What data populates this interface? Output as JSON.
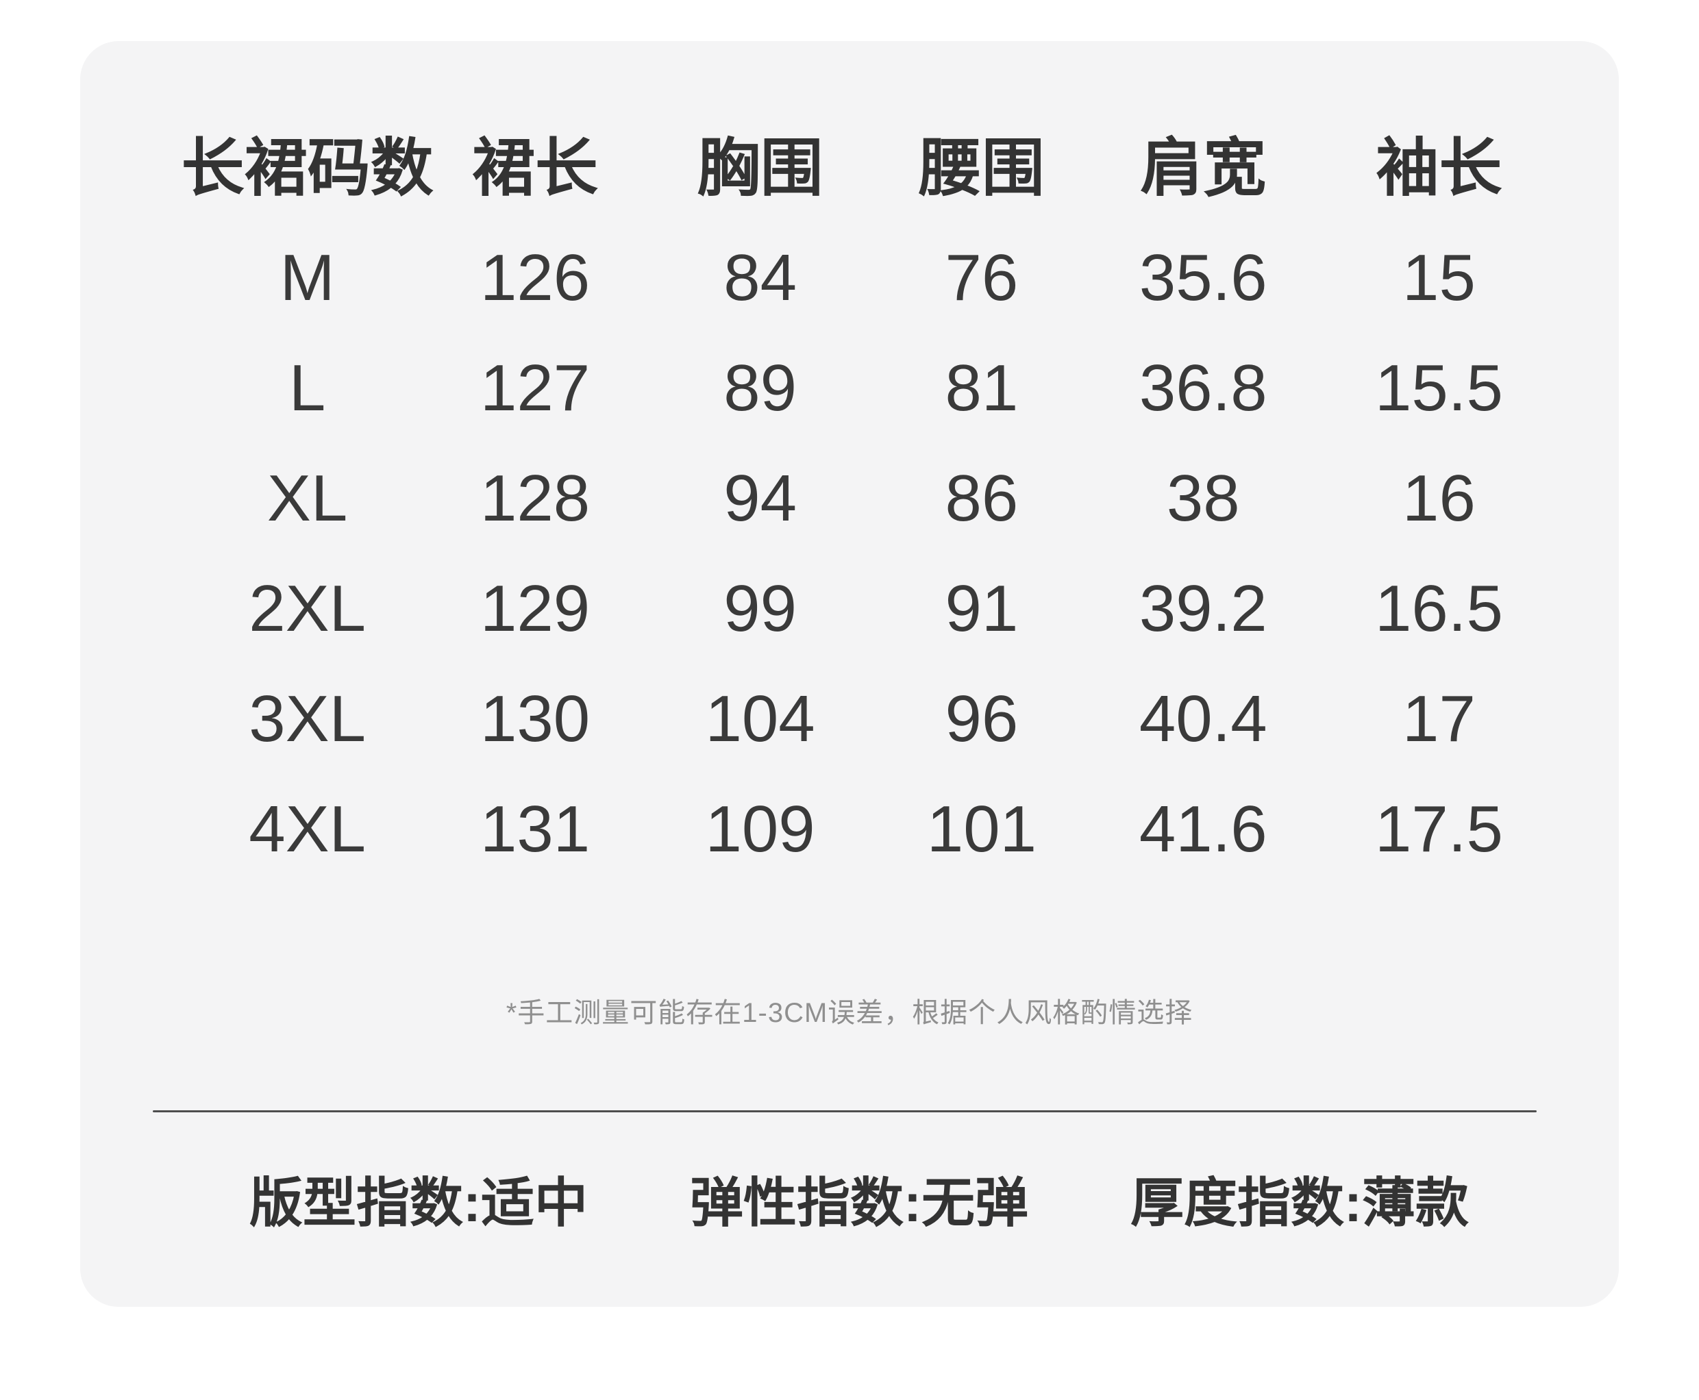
{
  "colors": {
    "page_background": "#ffffff",
    "card_background": "#f4f4f5",
    "header_text": "#333333",
    "value_text": "#3a3a3a",
    "note_text": "#8f8f8f",
    "divider": "#4e4e4e"
  },
  "chart_data": {
    "type": "table",
    "title": "",
    "columns": [
      "长裙码数",
      "裙长",
      "胸围",
      "腰围",
      "肩宽",
      "袖长"
    ],
    "rows": [
      [
        "M",
        "126",
        "84",
        "76",
        "35.6",
        "15"
      ],
      [
        "L",
        "127",
        "89",
        "81",
        "36.8",
        "15.5"
      ],
      [
        "XL",
        "128",
        "94",
        "86",
        "38",
        "16"
      ],
      [
        "2XL",
        "129",
        "99",
        "91",
        "39.2",
        "16.5"
      ],
      [
        "3XL",
        "130",
        "104",
        "96",
        "40.4",
        "17"
      ],
      [
        "4XL",
        "131",
        "109",
        "101",
        "41.6",
        "17.5"
      ]
    ],
    "footnote": "*手工测量可能存在1-3CM误差，根据个人风格酌情选择",
    "footer": [
      "版型指数:适中",
      "弹性指数:无弹",
      "厚度指数:薄款"
    ]
  }
}
